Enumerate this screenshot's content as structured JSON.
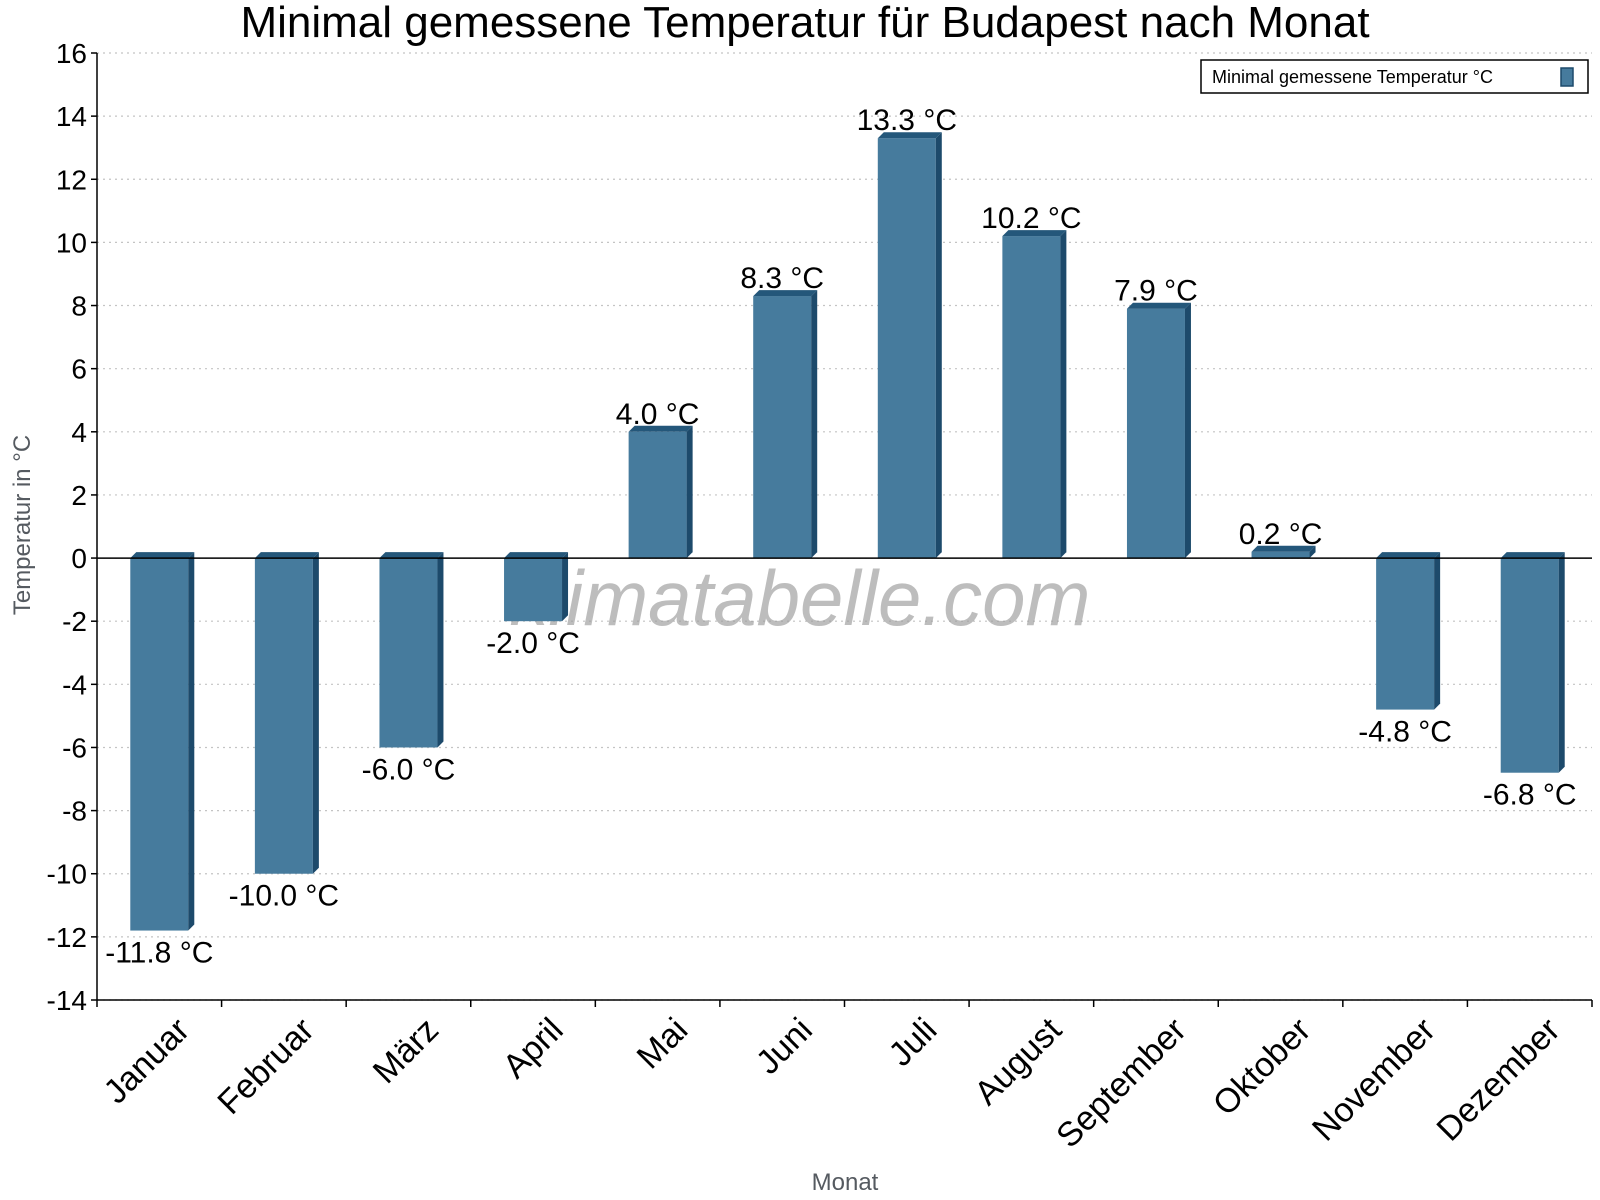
{
  "chart_data": {
    "type": "bar",
    "title": "Minimal gemessene Temperatur für Budapest nach Monat",
    "xlabel": "Monat",
    "ylabel": "Temperatur in °C",
    "categories": [
      "Januar",
      "Februar",
      "März",
      "April",
      "Mai",
      "Juni",
      "Juli",
      "August",
      "September",
      "Oktober",
      "November",
      "Dezember"
    ],
    "series": [
      {
        "name": "Minimal gemessene Temperatur °C",
        "values": [
          -11.8,
          -10.0,
          -6.0,
          -2.0,
          4.0,
          8.3,
          13.3,
          10.2,
          7.9,
          0.2,
          -4.8,
          -6.8
        ],
        "labels": [
          "-11.8 °C",
          "-10.0 °C",
          "-6.0 °C",
          "-2.0 °C",
          "4.0 °C",
          "8.3 °C",
          "13.3 °C",
          "10.2 °C",
          "7.9 °C",
          "0.2 °C",
          "-4.8 °C",
          "-6.8 °C"
        ]
      }
    ],
    "ylim": [
      -14,
      16
    ],
    "yticks": [
      -14,
      -12,
      -10,
      -8,
      -6,
      -4,
      -2,
      0,
      2,
      4,
      6,
      8,
      10,
      12,
      14,
      16
    ],
    "grid": true,
    "legend_position": "top-right",
    "colors": {
      "bar": "#467b9d",
      "bar_side": "#1d4a6b",
      "bar_top": "#24577a"
    },
    "watermark": "klimatabelle.com"
  }
}
